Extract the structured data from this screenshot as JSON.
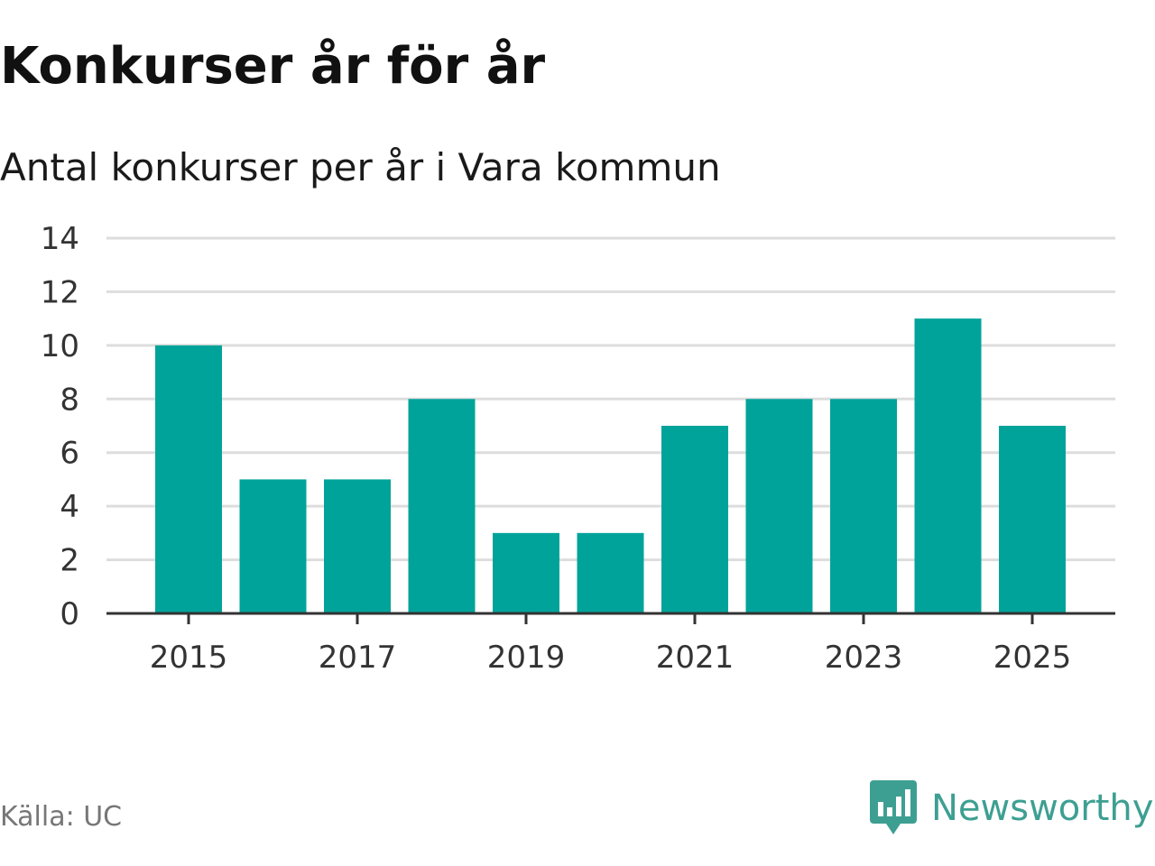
{
  "header": {
    "title": "Konkurser år för år",
    "subtitle": "Antal konkurser per år i Vara kommun"
  },
  "footer": {
    "source": "Källa: UC",
    "brand": "Newsworthy",
    "brand_icon": "newsworthy-logo-icon"
  },
  "colors": {
    "bar": "#00a39a",
    "grid": "#dddddd",
    "axis": "#333333",
    "brand": "#3d9f92"
  },
  "chart_data": {
    "type": "bar",
    "title": "Konkurser år för år",
    "subtitle": "Antal konkurser per år i Vara kommun",
    "xlabel": "",
    "ylabel": "",
    "categories": [
      "2015",
      "2016",
      "2017",
      "2018",
      "2019",
      "2020",
      "2021",
      "2022",
      "2023",
      "2024",
      "2025"
    ],
    "values": [
      10,
      5,
      5,
      8,
      3,
      3,
      7,
      8,
      8,
      11,
      7
    ],
    "x_tick_labels": [
      "2015",
      "2017",
      "2019",
      "2021",
      "2023",
      "2025"
    ],
    "y_ticks": [
      0,
      2,
      4,
      6,
      8,
      10,
      12,
      14
    ],
    "ylim": [
      0,
      14
    ],
    "grid": true,
    "legend": "none"
  }
}
